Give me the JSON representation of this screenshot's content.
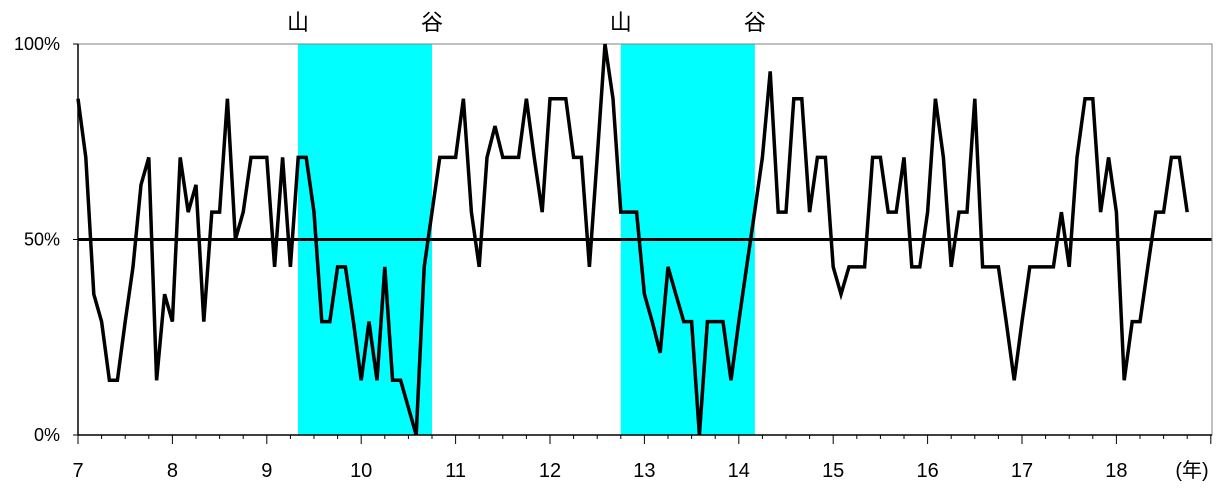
{
  "chart_data": {
    "type": "line",
    "title": "",
    "xlabel": "(年)",
    "ylabel": "",
    "xlim": [
      7,
      19.1
    ],
    "ylim": [
      0,
      100
    ],
    "x_ticks": [
      "7",
      "8",
      "9",
      "10",
      "11",
      "12",
      "13",
      "14",
      "15",
      "16",
      "17",
      "18"
    ],
    "y_ticks": [
      "0%",
      "50%",
      "100%"
    ],
    "reference_line": 50,
    "shaded_periods": [
      {
        "start": 9.33,
        "end": 10.75,
        "start_label": "山",
        "end_label": "谷",
        "color": "#00FFFF"
      },
      {
        "start": 12.75,
        "end": 14.17,
        "start_label": "山",
        "end_label": "谷",
        "color": "#00FFFF"
      }
    ],
    "series": [
      {
        "color": "#000000",
        "x": [
          7.0,
          7.083,
          7.167,
          7.25,
          7.333,
          7.417,
          7.5,
          7.583,
          7.667,
          7.75,
          7.833,
          7.917,
          8.0,
          8.083,
          8.167,
          8.25,
          8.333,
          8.417,
          8.5,
          8.583,
          8.667,
          8.75,
          8.833,
          8.917,
          9.0,
          9.083,
          9.167,
          9.25,
          9.333,
          9.417,
          9.5,
          9.583,
          9.667,
          9.75,
          9.833,
          9.917,
          10.0,
          10.083,
          10.167,
          10.25,
          10.333,
          10.417,
          10.5,
          10.583,
          10.667,
          10.75,
          10.833,
          10.917,
          11.0,
          11.083,
          11.167,
          11.25,
          11.333,
          11.417,
          11.5,
          11.583,
          11.667,
          11.75,
          11.833,
          11.917,
          12.0,
          12.083,
          12.167,
          12.25,
          12.333,
          12.417,
          12.5,
          12.583,
          12.667,
          12.75,
          12.833,
          12.917,
          13.0,
          13.083,
          13.167,
          13.25,
          13.333,
          13.417,
          13.5,
          13.583,
          13.667,
          13.75,
          13.833,
          13.917,
          14.0,
          14.083,
          14.167,
          14.25,
          14.333,
          14.417,
          14.5,
          14.583,
          14.667,
          14.75,
          14.833,
          14.917,
          15.0,
          15.083,
          15.167,
          15.25,
          15.333,
          15.417,
          15.5,
          15.583,
          15.667,
          15.75,
          15.833,
          15.917,
          16.0,
          16.083,
          16.167,
          16.25,
          16.333,
          16.417,
          16.5,
          16.583,
          16.667,
          16.75,
          16.833,
          16.917,
          17.0,
          17.083,
          17.167,
          17.25,
          17.333,
          17.417,
          17.5,
          17.583,
          17.667,
          17.75,
          17.833,
          17.917,
          18.0,
          18.083,
          18.167,
          18.25,
          18.333,
          18.417,
          18.5,
          18.583,
          18.667,
          18.75
        ],
        "y": [
          86,
          71,
          36,
          29,
          14,
          14,
          29,
          43,
          64,
          71,
          14,
          36,
          29,
          71,
          57,
          64,
          29,
          57,
          57,
          86,
          50,
          57,
          71,
          71,
          71,
          43,
          71,
          43,
          71,
          71,
          57,
          29,
          29,
          43,
          43,
          29,
          14,
          29,
          14,
          43,
          14,
          14,
          7,
          0,
          43,
          57,
          71,
          71,
          71,
          86,
          57,
          43,
          71,
          79,
          71,
          71,
          71,
          86,
          71,
          57,
          86,
          86,
          86,
          71,
          71,
          43,
          71,
          100,
          86,
          57,
          57,
          57,
          36,
          29,
          21,
          43,
          36,
          29,
          29,
          0,
          29,
          29,
          29,
          14,
          29,
          43,
          57,
          71,
          93,
          57,
          57,
          86,
          86,
          57,
          71,
          71,
          43,
          36,
          43,
          43,
          43,
          71,
          71,
          57,
          57,
          71,
          43,
          43,
          57,
          86,
          71,
          43,
          57,
          57,
          86,
          43,
          43,
          43,
          29,
          14,
          29,
          43,
          43,
          43,
          43,
          57,
          43,
          71,
          86,
          86,
          57,
          71,
          57,
          14,
          29,
          29,
          43,
          57,
          57,
          71,
          71,
          57
        ]
      }
    ]
  }
}
